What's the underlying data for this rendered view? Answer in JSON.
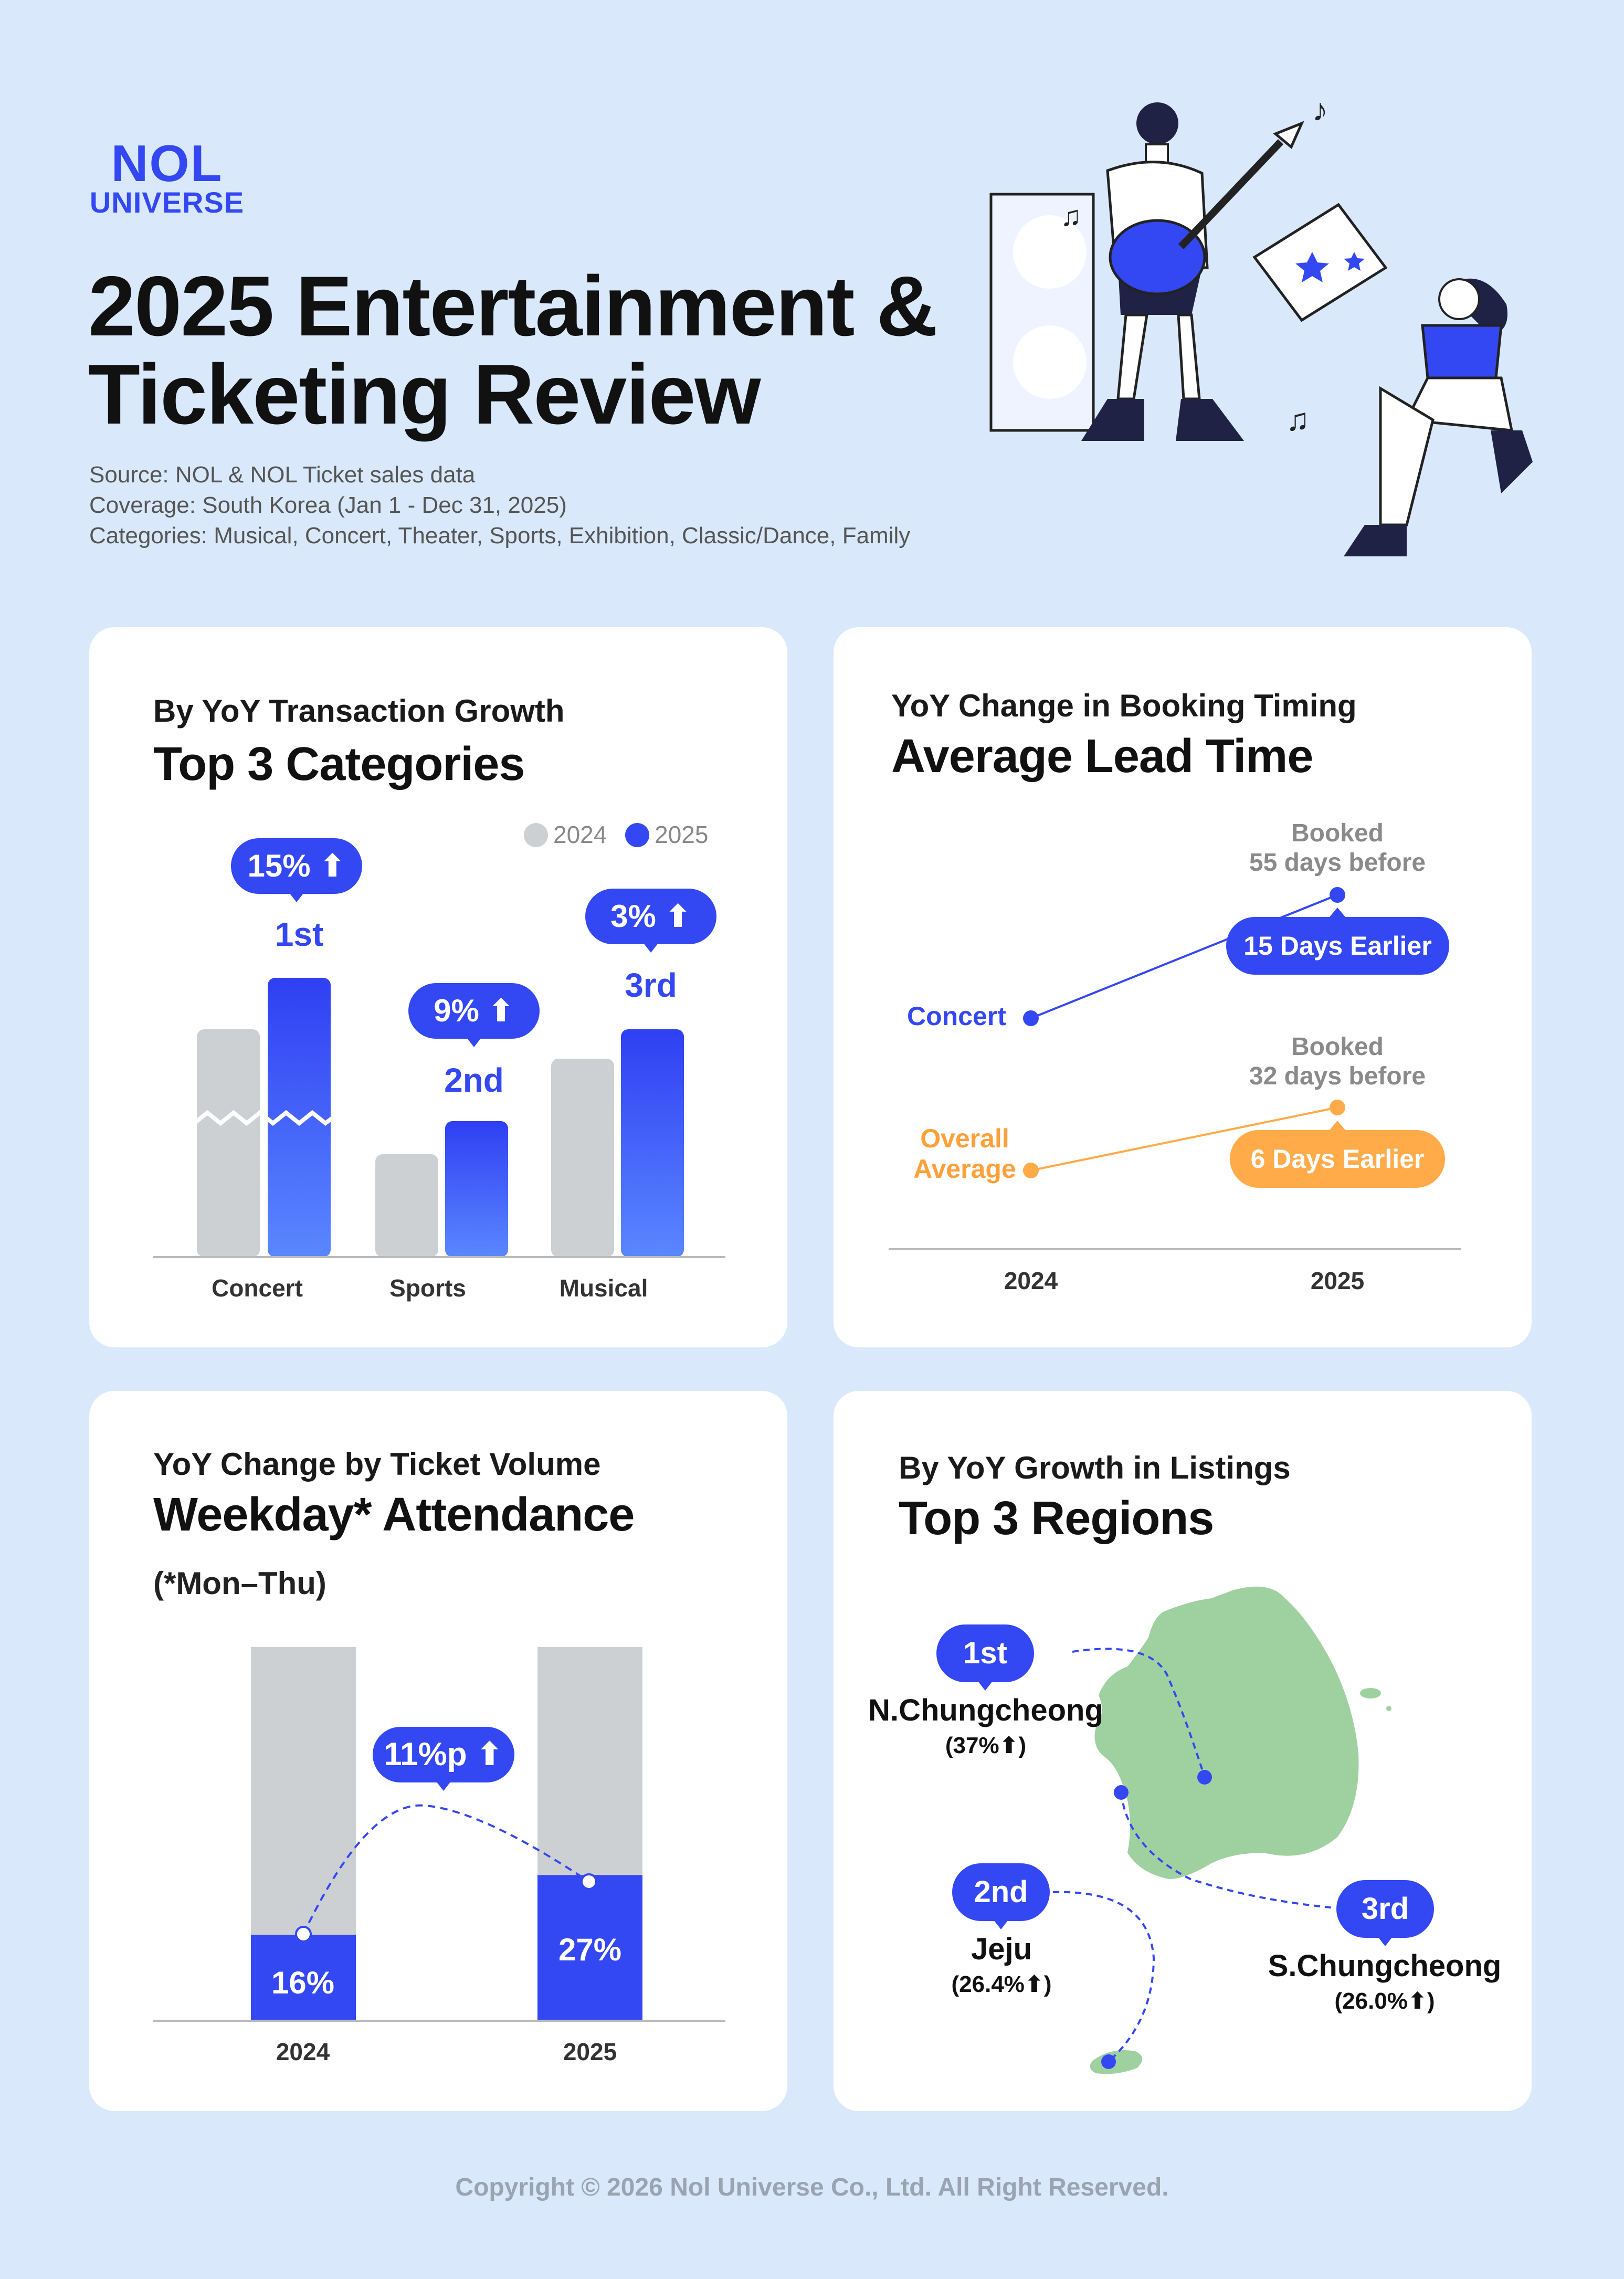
{
  "brand": {
    "line1": "NOL",
    "line2": "UNIVERSE"
  },
  "title": "2025 Entertainment & Ticketing Review",
  "title_line1": "2025 Entertainment &",
  "title_line2": "Ticketing Review",
  "meta": {
    "source": "Source: NOL & NOL Ticket sales data",
    "coverage": "Coverage: South Korea (Jan 1 - Dec 31, 2025)",
    "categories": "Categories: Musical, Concert, Theater, Sports, Exhibition, Classic/Dance, Family"
  },
  "colors": {
    "accent": "#3347f2",
    "gray": "#cdd0d3",
    "orange": "#ffab4a",
    "map_green": "#9fd1a0",
    "bg": "#d9e9fb"
  },
  "card1": {
    "subtitle": "By YoY Transaction Growth",
    "title": "Top 3 Categories",
    "legend": [
      "2024",
      "2025"
    ],
    "chart_data": {
      "type": "bar",
      "categories": [
        "Concert",
        "Sports",
        "Musical"
      ],
      "series": [
        {
          "name": "2024",
          "values": [
            0.62,
            0.28,
            0.54
          ]
        },
        {
          "name": "2025",
          "values": [
            0.76,
            0.37,
            0.62
          ]
        }
      ],
      "growth_labels": [
        "15%",
        "9%",
        "3%"
      ],
      "ranks": [
        "1st",
        "2nd",
        "3rd"
      ]
    }
  },
  "card2": {
    "subtitle": "YoY Change in Booking Timing",
    "title": "Average Lead Time",
    "chart_data": {
      "type": "line",
      "x": [
        "2024",
        "2025"
      ],
      "series": [
        {
          "name": "Concert",
          "values": [
            40,
            55
          ],
          "note": "Booked 55 days before",
          "change": "15 Days Earlier"
        },
        {
          "name": "Overall Average",
          "values": [
            26,
            32
          ],
          "note": "Booked 32 days before",
          "change": "6 Days Earlier"
        }
      ]
    },
    "concert_label": "Concert",
    "overall_label_1": "Overall",
    "overall_label_2": "Average",
    "concert_note_1": "Booked",
    "concert_note_2": "55 days before",
    "overall_note_1": "Booked",
    "overall_note_2": "32 days before",
    "concert_change": "15 Days Earlier",
    "overall_change": "6 Days Earlier"
  },
  "card3": {
    "subtitle": "YoY Change by Ticket Volume",
    "title": "Weekday* Attendance",
    "footnote": "(*Mon–Thu)",
    "chart_data": {
      "type": "bar",
      "categories": [
        "2024",
        "2025"
      ],
      "values": [
        16,
        27
      ],
      "unit": "%",
      "change": "11%p"
    },
    "label_2024": "16%",
    "label_2025": "27%"
  },
  "card4": {
    "subtitle": "By YoY Growth in Listings",
    "title": "Top 3 Regions",
    "regions": [
      {
        "rank": "1st",
        "name": "N.Chungcheong",
        "growth": "(37%"
      },
      {
        "rank": "2nd",
        "name": "Jeju",
        "growth": "(26.4%"
      },
      {
        "rank": "3rd",
        "name": "S.Chungcheong",
        "growth": "(26.0%"
      }
    ],
    "close_paren": ")"
  },
  "copyright": "Copyright © 2026 Nol Universe Co., Ltd. All Right Reserved."
}
